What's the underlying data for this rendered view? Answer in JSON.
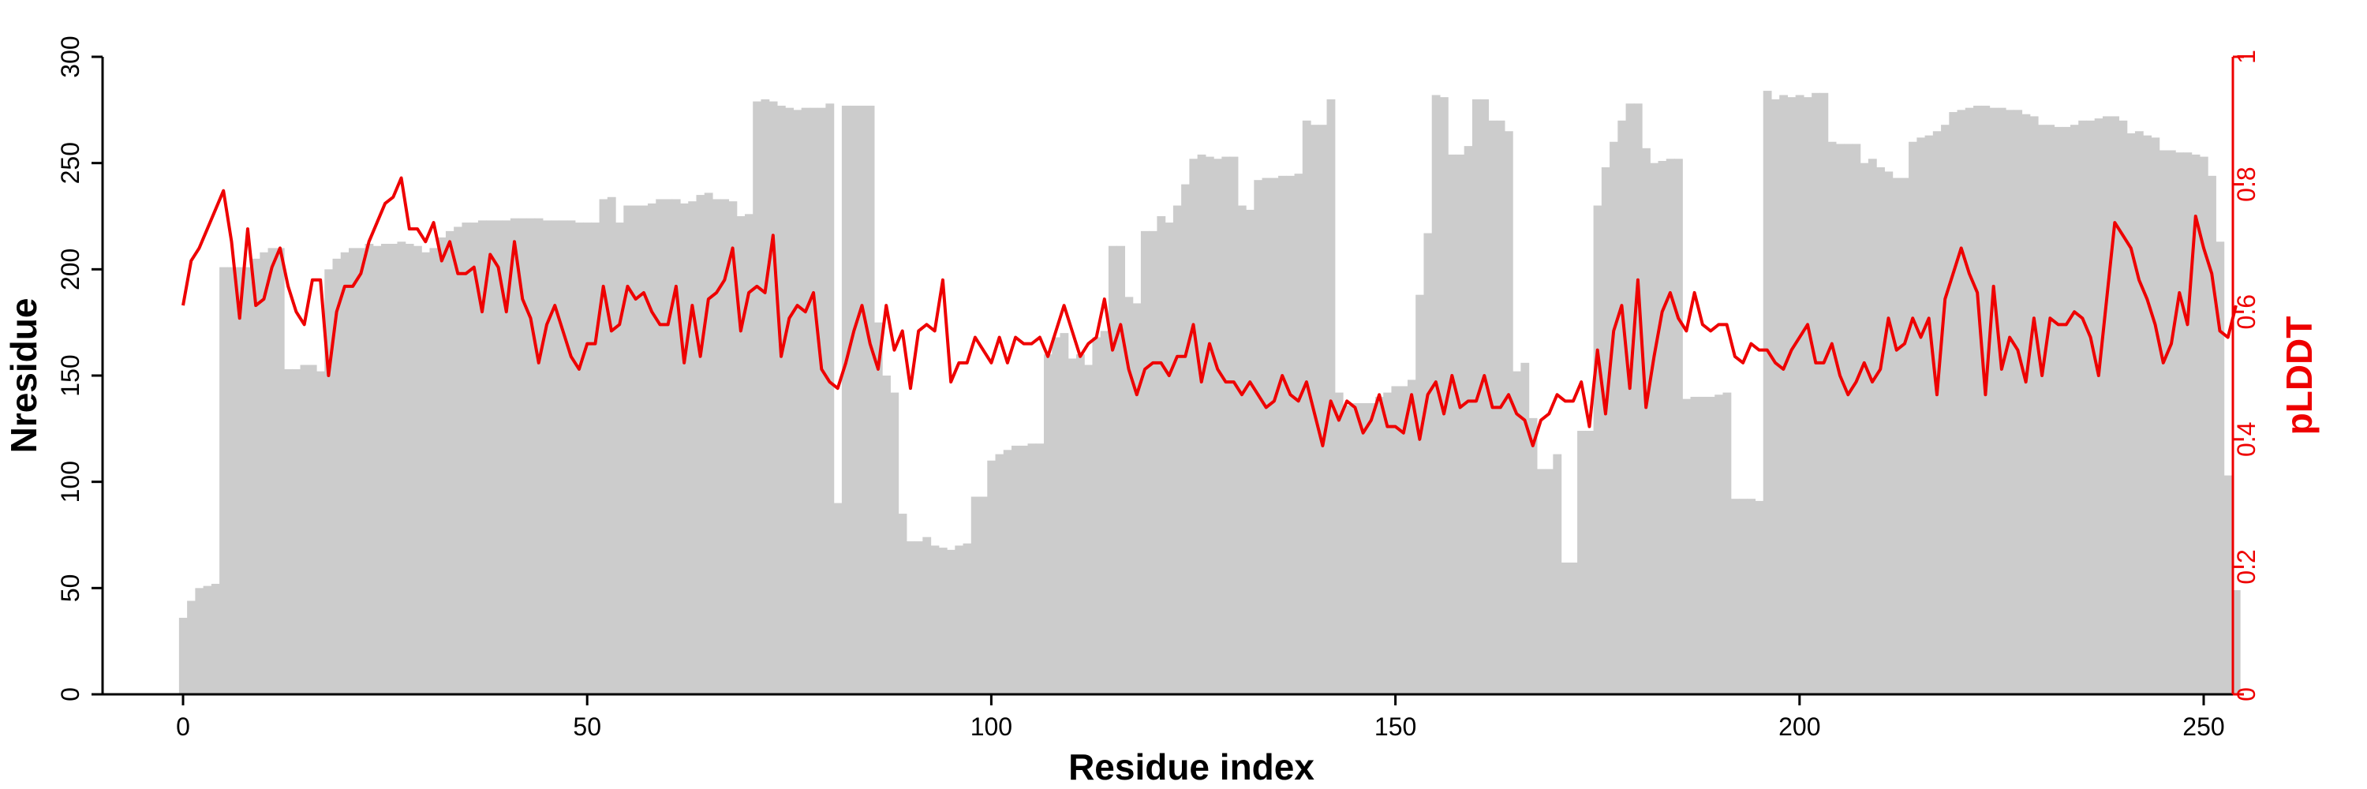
{
  "colors": {
    "bars": "#cccccc",
    "line": "#ee0000",
    "axis": "#000000"
  },
  "chart_data": {
    "type": "bar",
    "x_label": "Residue index",
    "y_label": "Nresidue",
    "y2_label": "pLDDT",
    "xlim": [
      -10,
      265
    ],
    "ylim": [
      0,
      300
    ],
    "y2lim": [
      0,
      1
    ],
    "x_ticks": [
      0,
      50,
      100,
      150,
      200,
      250
    ],
    "y_ticks": [
      0,
      50,
      100,
      150,
      200,
      250,
      300
    ],
    "y2_ticks": [
      "0",
      "0.2",
      "0.4",
      "0.6",
      "0.8",
      "1"
    ],
    "grid": false,
    "series": [
      {
        "kind": "bar",
        "axis": "left",
        "x_start": 0,
        "values": [
          36,
          44,
          50,
          51,
          52,
          201,
          201,
          201,
          201,
          205,
          208,
          210,
          210,
          153,
          153,
          155,
          155,
          152,
          200,
          205,
          208,
          210,
          210,
          212,
          211,
          212,
          212,
          213,
          212,
          211,
          208,
          210,
          215,
          218,
          220,
          222,
          222,
          223,
          223,
          223,
          223,
          224,
          224,
          224,
          224,
          223,
          223,
          223,
          223,
          222,
          222,
          222,
          233,
          234,
          222,
          230,
          230,
          230,
          231,
          233,
          233,
          233,
          231,
          232,
          235,
          236,
          233,
          233,
          232,
          225,
          226,
          279,
          280,
          279,
          277,
          276,
          275,
          276,
          276,
          276,
          278,
          90,
          277,
          277,
          277,
          277,
          175,
          150,
          142,
          85,
          72,
          72,
          74,
          70,
          69,
          68,
          70,
          71,
          93,
          93,
          110,
          113,
          115,
          117,
          117,
          118,
          118,
          160,
          168,
          170,
          158,
          160,
          155,
          168,
          171,
          211,
          211,
          187,
          184,
          218,
          218,
          225,
          222,
          230,
          240,
          252,
          254,
          253,
          252,
          253,
          253,
          230,
          228,
          242,
          243,
          243,
          244,
          244,
          245,
          270,
          268,
          268,
          280,
          142,
          136,
          137,
          137,
          137,
          140,
          142,
          145,
          145,
          148,
          188,
          217,
          282,
          281,
          254,
          254,
          258,
          280,
          280,
          270,
          270,
          265,
          152,
          156,
          130,
          106,
          106,
          113,
          62,
          62,
          124,
          124,
          230,
          248,
          260,
          270,
          278,
          278,
          257,
          250,
          251,
          252,
          252,
          139,
          140,
          140,
          140,
          141,
          142,
          92,
          92,
          92,
          91,
          284,
          280,
          282,
          281,
          282,
          281,
          283,
          283,
          260,
          259,
          259,
          259,
          250,
          252,
          248,
          246,
          243,
          243,
          260,
          262,
          263,
          265,
          268,
          274,
          275,
          276,
          277,
          277,
          276,
          276,
          275,
          275,
          273,
          272,
          268,
          268,
          267,
          267,
          268,
          270,
          270,
          271,
          272,
          272,
          270,
          264,
          265,
          263,
          262,
          256,
          256,
          255,
          255,
          254,
          253,
          244,
          213,
          103,
          49
        ]
      },
      {
        "kind": "line",
        "axis": "right",
        "x_start": 0,
        "values": [
          0.61,
          0.68,
          0.7,
          0.73,
          0.76,
          0.79,
          0.71,
          0.59,
          0.73,
          0.61,
          0.62,
          0.67,
          0.7,
          0.64,
          0.6,
          0.58,
          0.65,
          0.65,
          0.5,
          0.6,
          0.64,
          0.64,
          0.66,
          0.71,
          0.74,
          0.77,
          0.78,
          0.81,
          0.73,
          0.73,
          0.71,
          0.74,
          0.68,
          0.71,
          0.66,
          0.66,
          0.67,
          0.6,
          0.69,
          0.67,
          0.6,
          0.71,
          0.62,
          0.59,
          0.52,
          0.58,
          0.61,
          0.57,
          0.53,
          0.51,
          0.55,
          0.55,
          0.64,
          0.57,
          0.58,
          0.64,
          0.62,
          0.63,
          0.6,
          0.58,
          0.58,
          0.64,
          0.52,
          0.61,
          0.53,
          0.62,
          0.63,
          0.65,
          0.7,
          0.57,
          0.63,
          0.64,
          0.63,
          0.72,
          0.53,
          0.59,
          0.61,
          0.6,
          0.63,
          0.51,
          0.49,
          0.48,
          0.52,
          0.57,
          0.61,
          0.55,
          0.51,
          0.61,
          0.54,
          0.57,
          0.48,
          0.57,
          0.58,
          0.57,
          0.65,
          0.49,
          0.52,
          0.52,
          0.56,
          0.54,
          0.52,
          0.56,
          0.52,
          0.56,
          0.55,
          0.55,
          0.56,
          0.53,
          0.57,
          0.61,
          0.57,
          0.53,
          0.55,
          0.56,
          0.62,
          0.54,
          0.58,
          0.51,
          0.47,
          0.51,
          0.52,
          0.52,
          0.5,
          0.53,
          0.53,
          0.58,
          0.49,
          0.55,
          0.51,
          0.49,
          0.49,
          0.47,
          0.49,
          0.47,
          0.45,
          0.46,
          0.5,
          0.47,
          0.46,
          0.49,
          0.44,
          0.39,
          0.46,
          0.43,
          0.46,
          0.45,
          0.41,
          0.43,
          0.47,
          0.42,
          0.42,
          0.41,
          0.47,
          0.4,
          0.47,
          0.49,
          0.44,
          0.5,
          0.45,
          0.46,
          0.46,
          0.5,
          0.45,
          0.45,
          0.47,
          0.44,
          0.43,
          0.39,
          0.43,
          0.44,
          0.47,
          0.46,
          0.46,
          0.49,
          0.42,
          0.54,
          0.44,
          0.57,
          0.61,
          0.48,
          0.65,
          0.45,
          0.53,
          0.6,
          0.63,
          0.59,
          0.57,
          0.63,
          0.58,
          0.57,
          0.58,
          0.58,
          0.53,
          0.52,
          0.55,
          0.54,
          0.54,
          0.52,
          0.51,
          0.54,
          0.56,
          0.58,
          0.52,
          0.52,
          0.55,
          0.5,
          0.47,
          0.49,
          0.52,
          0.49,
          0.51,
          0.59,
          0.54,
          0.55,
          0.59,
          0.56,
          0.59,
          0.47,
          0.62,
          0.66,
          0.7,
          0.66,
          0.63,
          0.47,
          0.64,
          0.51,
          0.56,
          0.54,
          0.49,
          0.59,
          0.5,
          0.59,
          0.58,
          0.58,
          0.6,
          0.59,
          0.56,
          0.5,
          0.62,
          0.74,
          0.72,
          0.7,
          0.65,
          0.62,
          0.58,
          0.52,
          0.55,
          0.63,
          0.58,
          0.75,
          0.7,
          0.66,
          0.57,
          0.56,
          0.61
        ]
      }
    ]
  }
}
